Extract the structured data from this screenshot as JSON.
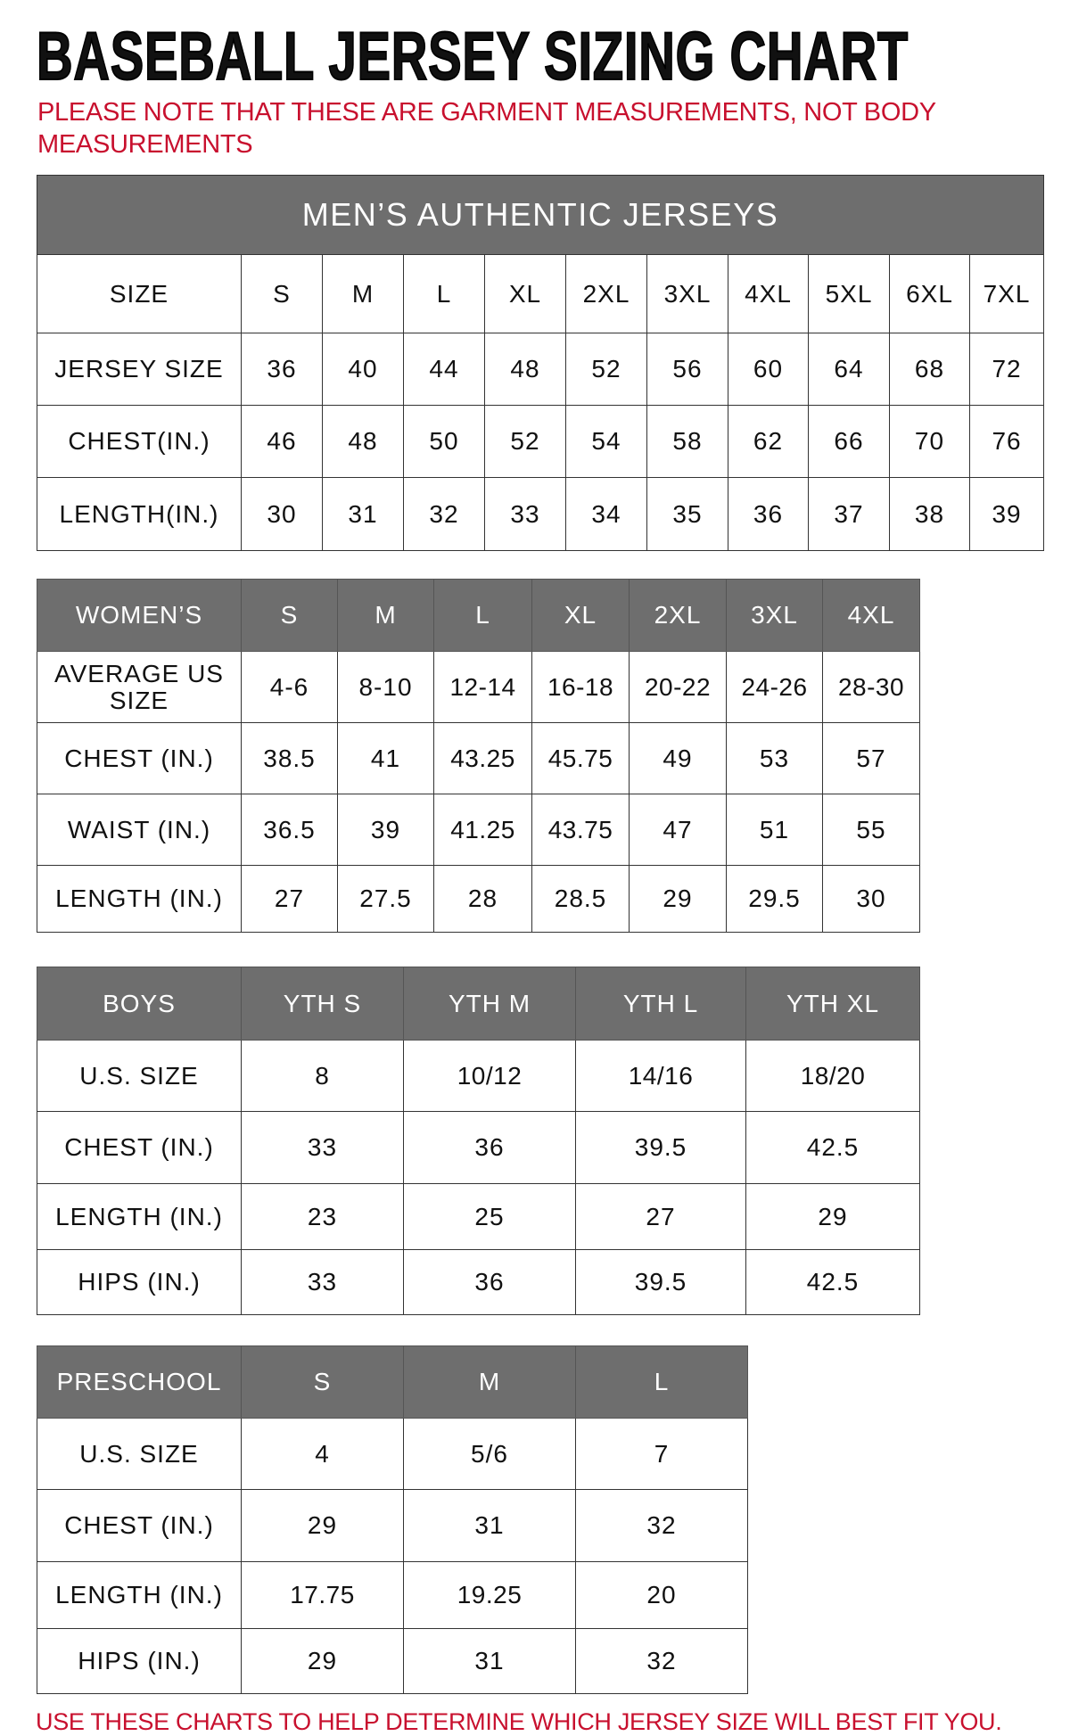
{
  "title": "BASEBALL JERSEY SIZING CHART",
  "note": "PLEASE NOTE THAT THESE ARE GARMENT MEASUREMENTS, NOT BODY MEASUREMENTS",
  "footer": "USE THESE CHARTS TO HELP DETERMINE WHICH JERSEY SIZE WILL BEST FIT YOU.",
  "colors": {
    "accent_red": "#c8102e",
    "header_gray": "#6e6e6e"
  },
  "tables": [
    {
      "id": "men",
      "banner": "MEN’S AUTHENTIC JERSEYS",
      "header_dark": false,
      "header": [
        "SIZE",
        "S",
        "M",
        "L",
        "XL",
        "2XL",
        "3XL",
        "4XL",
        "5XL",
        "6XL",
        "7XL"
      ],
      "rows": [
        [
          "JERSEY SIZE",
          "36",
          "40",
          "44",
          "48",
          "52",
          "56",
          "60",
          "64",
          "68",
          "72"
        ],
        [
          "CHEST(IN.)",
          "46",
          "48",
          "50",
          "52",
          "54",
          "58",
          "62",
          "66",
          "70",
          "76"
        ],
        [
          "LENGTH(IN.)",
          "30",
          "31",
          "32",
          "33",
          "34",
          "35",
          "36",
          "37",
          "38",
          "39"
        ]
      ]
    },
    {
      "id": "women",
      "header_dark": true,
      "header": [
        "WOMEN’S",
        "S",
        "M",
        "L",
        "XL",
        "2XL",
        "3XL",
        "4XL"
      ],
      "rows": [
        [
          "AVERAGE US SIZE",
          "4-6",
          "8-10",
          "12-14",
          "16-18",
          "20-22",
          "24-26",
          "28-30"
        ],
        [
          "CHEST (IN.)",
          "38.5",
          "41",
          "43.25",
          "45.75",
          "49",
          "53",
          "57"
        ],
        [
          "WAIST (IN.)",
          "36.5",
          "39",
          "41.25",
          "43.75",
          "47",
          "51",
          "55"
        ],
        [
          "LENGTH (IN.)",
          "27",
          "27.5",
          "28",
          "28.5",
          "29",
          "29.5",
          "30"
        ]
      ]
    },
    {
      "id": "boys",
      "header_dark": true,
      "header": [
        "BOYS",
        "YTH S",
        "YTH M",
        "YTH L",
        "YTH XL"
      ],
      "rows": [
        [
          "U.S. SIZE",
          "8",
          "10/12",
          "14/16",
          "18/20"
        ],
        [
          "CHEST (IN.)",
          "33",
          "36",
          "39.5",
          "42.5"
        ],
        [
          "LENGTH (IN.)",
          "23",
          "25",
          "27",
          "29"
        ],
        [
          "HIPS (IN.)",
          "33",
          "36",
          "39.5",
          "42.5"
        ]
      ]
    },
    {
      "id": "pre",
      "header_dark": true,
      "header": [
        "PRESCHOOL",
        "S",
        "M",
        "L"
      ],
      "rows": [
        [
          "U.S. SIZE",
          "4",
          "5/6",
          "7"
        ],
        [
          "CHEST (IN.)",
          "29",
          "31",
          "32"
        ],
        [
          "LENGTH (IN.)",
          "17.75",
          "19.25",
          "20"
        ],
        [
          "HIPS (IN.)",
          "29",
          "31",
          "32"
        ]
      ]
    }
  ]
}
